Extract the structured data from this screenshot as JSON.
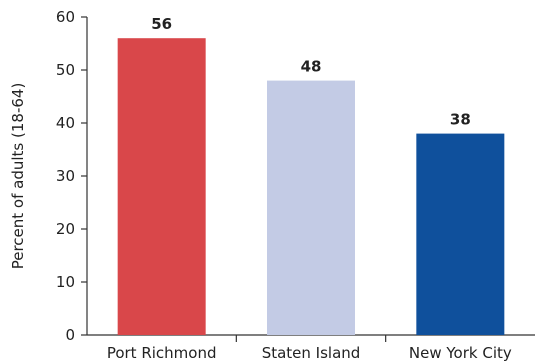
{
  "chart_data": {
    "type": "bar",
    "categories": [
      "Port Richmond",
      "Staten Island",
      "New York City"
    ],
    "values": [
      56,
      48,
      38
    ],
    "data_labels": [
      "56",
      "48",
      "38"
    ],
    "colors": [
      "#D9474A",
      "#C3CBE5",
      "#0F509C"
    ],
    "title": "",
    "xlabel": "",
    "ylabel": "Percent of adults (18-64)",
    "ylim": [
      0,
      60
    ],
    "yticks": [
      0,
      10,
      20,
      30,
      40,
      50,
      60
    ],
    "grid": false,
    "legend": "none"
  }
}
